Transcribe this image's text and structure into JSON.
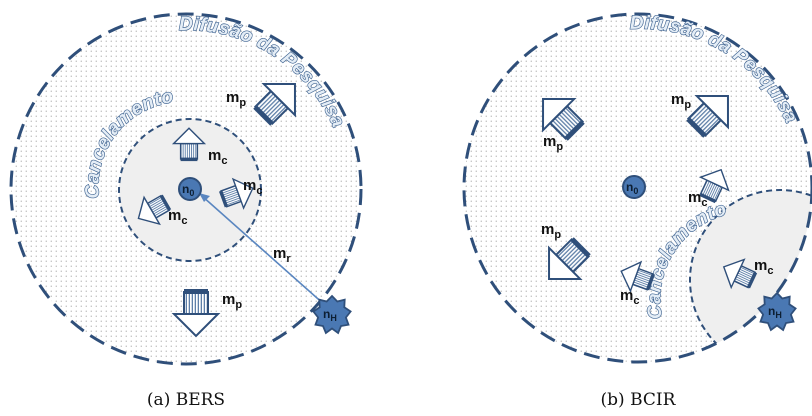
{
  "panels": [
    {
      "id": "a",
      "caption": "(a) BERS",
      "arc_outer": "Difusão da Pesquisa",
      "arc_inner": "Cancelamento",
      "nodes": {
        "origin": "n",
        "origin_sub": "0",
        "target": "n",
        "target_sub": "H"
      },
      "arrows": [
        {
          "kind": "p",
          "text": "m",
          "sub": "p"
        },
        {
          "kind": "p",
          "text": "m",
          "sub": "p"
        },
        {
          "kind": "c",
          "text": "m",
          "sub": "c"
        },
        {
          "kind": "c",
          "text": "m",
          "sub": "c"
        },
        {
          "kind": "c",
          "text": "m",
          "sub": "c"
        },
        {
          "kind": "r",
          "text": "m",
          "sub": "r"
        }
      ]
    },
    {
      "id": "b",
      "caption": "(b) BCIR",
      "arc_outer": "Difusão da Pesquisa",
      "arc_inner": "Cancelamento",
      "nodes": {
        "origin": "n",
        "origin_sub": "0",
        "target": "n",
        "target_sub": "H"
      },
      "arrows": [
        {
          "kind": "p",
          "text": "m",
          "sub": "p"
        },
        {
          "kind": "p",
          "text": "m",
          "sub": "p"
        },
        {
          "kind": "p",
          "text": "m",
          "sub": "p"
        },
        {
          "kind": "c",
          "text": "m",
          "sub": "c"
        },
        {
          "kind": "c",
          "text": "m",
          "sub": "c"
        },
        {
          "kind": "c",
          "text": "m",
          "sub": "c"
        }
      ]
    }
  ],
  "colors": {
    "ring": "#2f4f7a",
    "arrow_outline": "#2f4f7a",
    "node_fill": "#4a78b3",
    "cancel_zone": "#efefef",
    "dots": "#8c8c8c"
  },
  "icons": {
    "node": "circle-node-icon",
    "target": "star-burst-icon",
    "message": "block-arrow-icon"
  }
}
